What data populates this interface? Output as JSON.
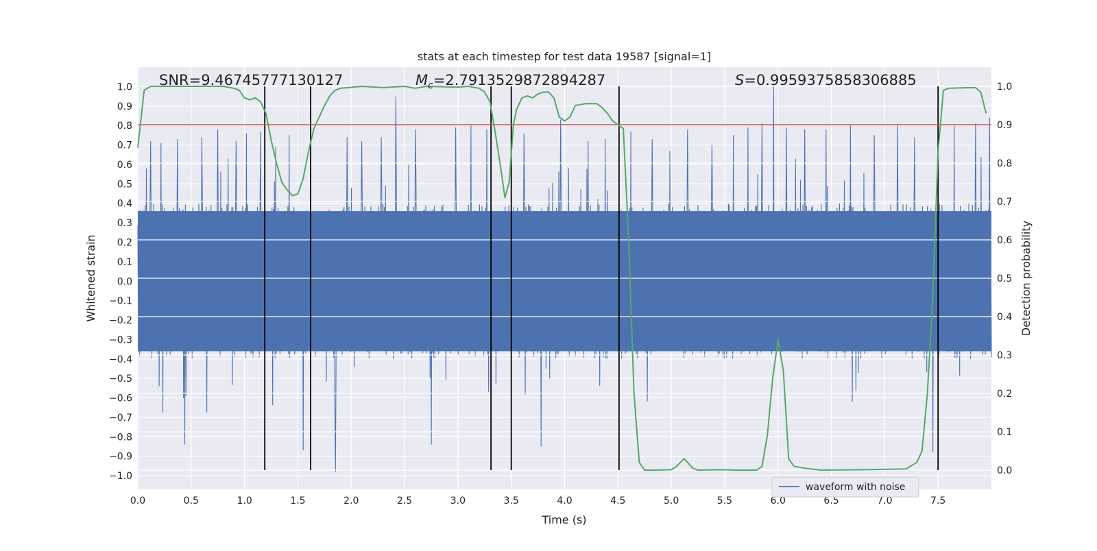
{
  "chart_data": {
    "type": "line",
    "title": "stats at each timestep for test data 19587 [signal=1]",
    "xlabel": "Time (s)",
    "ylabel_left": "Whitened strain",
    "ylabel_right": "Detection probability",
    "xlim": [
      0,
      8.0
    ],
    "ylim_left": [
      -1.07,
      1.1
    ],
    "ylim_right": [
      -0.05,
      1.05
    ],
    "x_ticks": [
      0.0,
      0.5,
      1.0,
      1.5,
      2.0,
      2.5,
      3.0,
      3.5,
      4.0,
      4.5,
      5.0,
      5.5,
      6.0,
      6.5,
      7.0,
      7.5
    ],
    "x_tick_labels": [
      "0.0",
      "0.5",
      "1.0",
      "1.5",
      "2.0",
      "2.5",
      "3.0",
      "3.5",
      "4.0",
      "4.5",
      "5.0",
      "5.5",
      "6.0",
      "6.5",
      "7.0",
      "7.5"
    ],
    "y_left_ticks": [
      1.0,
      0.9,
      0.8,
      0.7,
      0.6,
      0.5,
      0.4,
      0.3,
      0.2,
      0.1,
      0.0,
      -0.1,
      -0.2,
      -0.3,
      -0.4,
      -0.5,
      -0.6,
      -0.7,
      -0.8,
      -0.9,
      -1.0
    ],
    "y_left_tick_labels": [
      "1.0",
      "0.9",
      "0.8",
      "0.7",
      "0.6",
      "0.5",
      "0.4",
      "0.3",
      "0.2",
      "0.1",
      "0.0",
      "−0.1",
      "−0.2",
      "−0.3",
      "−0.4",
      "−0.5",
      "−0.6",
      "−0.7",
      "−0.8",
      "−0.9",
      "−1.0"
    ],
    "y_right_ticks": [
      1.0,
      0.9,
      0.8,
      0.7,
      0.6,
      0.5,
      0.4,
      0.3,
      0.2,
      0.1,
      0.0
    ],
    "y_right_tick_labels": [
      "1.0",
      "0.9",
      "0.8",
      "0.7",
      "0.6",
      "0.5",
      "0.4",
      "0.3",
      "0.2",
      "0.1",
      "0.0"
    ],
    "grid": true,
    "legend": {
      "position": "lower-right",
      "entries": [
        "waveform with noise"
      ]
    },
    "annotations": {
      "snr": "SNR=9.46745777130127",
      "mc_symbol": "M",
      "mc_sub": "c",
      "mc_value": "=2.7913529872894287",
      "s_symbol": "S",
      "s_value": "=0.9959375858306885"
    },
    "waveform": {
      "name": "waveform with noise",
      "color": "#4c72b0",
      "baseline_abs_max": 0.4,
      "peaks": [
        {
          "x": 0.08,
          "y": 0.58
        },
        {
          "x": 0.12,
          "y": 0.72
        },
        {
          "x": 0.22,
          "y": 0.71
        },
        {
          "x": 0.37,
          "y": 0.73
        },
        {
          "x": 0.44,
          "y": -0.84
        },
        {
          "x": 0.6,
          "y": 0.74
        },
        {
          "x": 0.75,
          "y": 0.78
        },
        {
          "x": 0.92,
          "y": 0.72
        },
        {
          "x": 1.02,
          "y": 0.76
        },
        {
          "x": 1.15,
          "y": 0.77
        },
        {
          "x": 1.29,
          "y": 0.69
        },
        {
          "x": 1.42,
          "y": 0.75
        },
        {
          "x": 1.55,
          "y": -0.87
        },
        {
          "x": 1.85,
          "y": -0.98
        },
        {
          "x": 1.96,
          "y": 0.74
        },
        {
          "x": 2.1,
          "y": 0.72
        },
        {
          "x": 2.28,
          "y": 0.74
        },
        {
          "x": 2.42,
          "y": 0.95
        },
        {
          "x": 2.6,
          "y": 0.78
        },
        {
          "x": 2.75,
          "y": -0.84
        },
        {
          "x": 2.98,
          "y": 0.79
        },
        {
          "x": 3.12,
          "y": 0.8
        },
        {
          "x": 3.27,
          "y": 0.78
        },
        {
          "x": 3.62,
          "y": 0.76
        },
        {
          "x": 3.78,
          "y": -0.85
        },
        {
          "x": 3.96,
          "y": 0.83
        },
        {
          "x": 4.22,
          "y": 0.72
        },
        {
          "x": 4.38,
          "y": 0.73
        },
        {
          "x": 4.62,
          "y": 0.77
        },
        {
          "x": 4.82,
          "y": 0.73
        },
        {
          "x": 5.15,
          "y": 0.78
        },
        {
          "x": 5.38,
          "y": 0.7
        },
        {
          "x": 5.58,
          "y": 0.75
        },
        {
          "x": 5.72,
          "y": 0.79
        },
        {
          "x": 5.85,
          "y": 0.81
        },
        {
          "x": 5.96,
          "y": 1.0
        },
        {
          "x": 6.08,
          "y": 0.79
        },
        {
          "x": 6.25,
          "y": 0.78
        },
        {
          "x": 6.45,
          "y": 0.78
        },
        {
          "x": 6.68,
          "y": 0.8
        },
        {
          "x": 6.9,
          "y": 0.75
        },
        {
          "x": 7.12,
          "y": 0.8
        },
        {
          "x": 7.28,
          "y": 0.74
        },
        {
          "x": 7.45,
          "y": -0.88
        },
        {
          "x": 7.65,
          "y": 0.8
        },
        {
          "x": 7.85,
          "y": 0.81
        },
        {
          "x": 7.98,
          "y": 0.84
        }
      ]
    },
    "threshold": {
      "value": 0.9,
      "color": "#c44e52"
    },
    "detection_probability": {
      "color": "#55a868",
      "points": [
        [
          0.0,
          0.84
        ],
        [
          0.06,
          0.99
        ],
        [
          0.12,
          1.0
        ],
        [
          0.5,
          1.0
        ],
        [
          0.8,
          1.0
        ],
        [
          0.9,
          0.995
        ],
        [
          0.95,
          0.99
        ],
        [
          1.0,
          0.97
        ],
        [
          1.05,
          0.965
        ],
        [
          1.1,
          0.97
        ],
        [
          1.15,
          0.96
        ],
        [
          1.2,
          0.93
        ],
        [
          1.25,
          0.86
        ],
        [
          1.3,
          0.8
        ],
        [
          1.35,
          0.75
        ],
        [
          1.4,
          0.73
        ],
        [
          1.45,
          0.715
        ],
        [
          1.5,
          0.72
        ],
        [
          1.55,
          0.76
        ],
        [
          1.6,
          0.83
        ],
        [
          1.65,
          0.89
        ],
        [
          1.7,
          0.92
        ],
        [
          1.75,
          0.95
        ],
        [
          1.8,
          0.975
        ],
        [
          1.85,
          0.99
        ],
        [
          1.9,
          0.995
        ],
        [
          2.1,
          1.0
        ],
        [
          2.3,
          0.997
        ],
        [
          2.5,
          1.0
        ],
        [
          2.6,
          0.995
        ],
        [
          2.7,
          1.0
        ],
        [
          3.0,
          0.998
        ],
        [
          3.1,
          1.0
        ],
        [
          3.2,
          0.995
        ],
        [
          3.25,
          0.985
        ],
        [
          3.3,
          0.96
        ],
        [
          3.35,
          0.88
        ],
        [
          3.4,
          0.79
        ],
        [
          3.44,
          0.71
        ],
        [
          3.48,
          0.75
        ],
        [
          3.52,
          0.9
        ],
        [
          3.55,
          0.94
        ],
        [
          3.6,
          0.97
        ],
        [
          3.65,
          0.975
        ],
        [
          3.7,
          0.97
        ],
        [
          3.75,
          0.98
        ],
        [
          3.8,
          0.985
        ],
        [
          3.85,
          0.985
        ],
        [
          3.9,
          0.97
        ],
        [
          3.95,
          0.92
        ],
        [
          4.0,
          0.91
        ],
        [
          4.05,
          0.92
        ],
        [
          4.1,
          0.95
        ],
        [
          4.2,
          0.955
        ],
        [
          4.3,
          0.955
        ],
        [
          4.35,
          0.945
        ],
        [
          4.4,
          0.93
        ],
        [
          4.45,
          0.91
        ],
        [
          4.5,
          0.9
        ],
        [
          4.55,
          0.89
        ],
        [
          4.6,
          0.6
        ],
        [
          4.65,
          0.2
        ],
        [
          4.7,
          0.02
        ],
        [
          4.75,
          0.0
        ],
        [
          4.85,
          0.0
        ],
        [
          5.0,
          0.001
        ],
        [
          5.05,
          0.01
        ],
        [
          5.12,
          0.03
        ],
        [
          5.2,
          0.005
        ],
        [
          5.25,
          0.0
        ],
        [
          5.5,
          0.001
        ],
        [
          5.6,
          0.0
        ],
        [
          5.8,
          0.0
        ],
        [
          5.85,
          0.01
        ],
        [
          5.9,
          0.09
        ],
        [
          5.95,
          0.24
        ],
        [
          6.0,
          0.34
        ],
        [
          6.05,
          0.26
        ],
        [
          6.1,
          0.03
        ],
        [
          6.15,
          0.01
        ],
        [
          6.25,
          0.005
        ],
        [
          6.4,
          0.0
        ],
        [
          6.8,
          0.001
        ],
        [
          7.2,
          0.003
        ],
        [
          7.3,
          0.02
        ],
        [
          7.35,
          0.05
        ],
        [
          7.4,
          0.2
        ],
        [
          7.45,
          0.45
        ],
        [
          7.5,
          0.83
        ],
        [
          7.55,
          0.99
        ],
        [
          7.6,
          0.995
        ],
        [
          7.85,
          0.997
        ],
        [
          7.9,
          0.985
        ],
        [
          7.95,
          0.93
        ]
      ]
    },
    "vertical_markers": [
      1.19,
      1.62,
      3.31,
      3.5,
      4.51,
      7.5
    ]
  }
}
